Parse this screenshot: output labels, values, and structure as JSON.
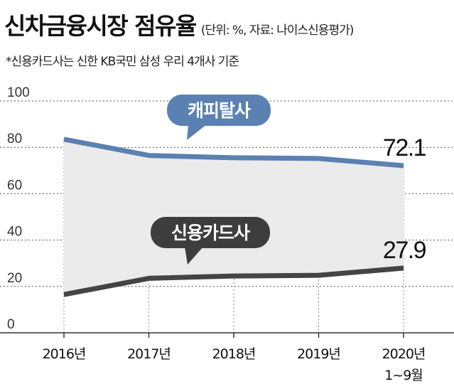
{
  "header": {
    "title": "신차금융시장 점유율",
    "source": "(단위: %, 자료: 나이스신용평가)",
    "note": "*신용카드사는 신한 KB국민 삼성 우리 4개사 기준"
  },
  "colors": {
    "capital_line": "#5b80b2",
    "capital_bubble": "#5b80b2",
    "card_line": "#444444",
    "card_bubble": "#3d3d3d",
    "area_fill": "#ebebeb",
    "grid": "#555555"
  },
  "chart_data": {
    "type": "line",
    "categories": [
      "2016년",
      "2017년",
      "2018년",
      "2019년",
      "2020년 1~9월"
    ],
    "tick_lines": [
      [
        "2016년"
      ],
      [
        "2017년"
      ],
      [
        "2018년"
      ],
      [
        "2019년"
      ],
      [
        "2020년",
        "1~9월"
      ]
    ],
    "y_ticks": [
      100,
      80,
      60,
      40,
      20,
      0
    ],
    "ylim": [
      0,
      100
    ],
    "grid": "horizontal dashed",
    "series": [
      {
        "name": "캐피탈사",
        "values": [
          83.5,
          76.5,
          75.5,
          75.2,
          72.1
        ],
        "end_label": "72.1"
      },
      {
        "name": "신용카드사",
        "values": [
          16.5,
          23.5,
          24.5,
          24.8,
          27.9
        ],
        "end_label": "27.9"
      }
    ]
  }
}
